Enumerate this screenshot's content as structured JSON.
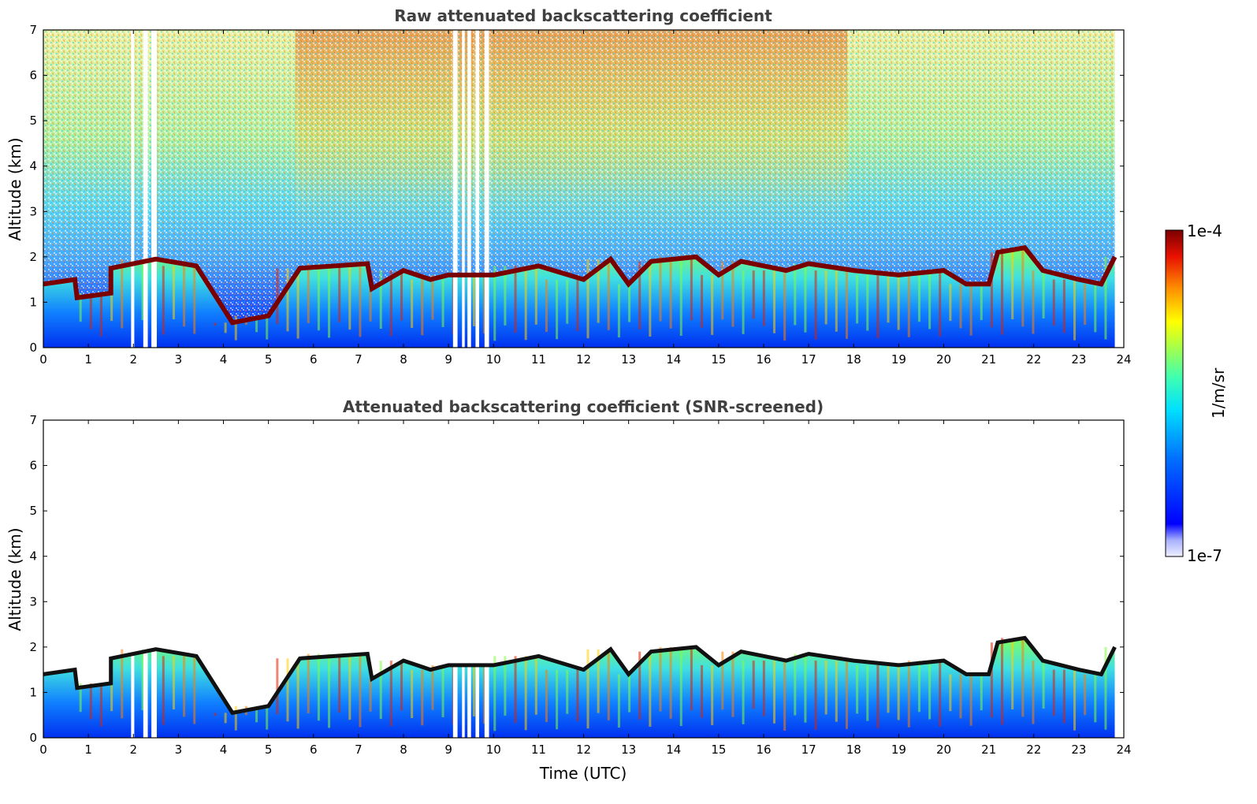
{
  "colors": {
    "jet": [
      "#eef0ff",
      "#c0c8ff",
      "#8c98ff",
      "#0000ff",
      "#0050ff",
      "#00a0ff",
      "#00e0ff",
      "#40ffc0",
      "#a0ff60",
      "#ffff00",
      "#ffc000",
      "#ff6000",
      "#e00000",
      "#7a0000"
    ],
    "boundary": "#7a0000",
    "boundary_screened": "#111111"
  },
  "chart_data": [
    {
      "type": "heatmap",
      "title": "Raw attenuated backscattering coefficient",
      "ylabel": "Altitude (km)",
      "xlabel": "",
      "xlim": [
        0,
        24
      ],
      "ylim": [
        0,
        7
      ],
      "x_ticks": [
        "0",
        "1",
        "2",
        "3",
        "4",
        "5",
        "6",
        "7",
        "8",
        "9",
        "10",
        "11",
        "12",
        "13",
        "14",
        "15",
        "16",
        "17",
        "18",
        "19",
        "20",
        "21",
        "22",
        "23",
        "24"
      ],
      "y_ticks": [
        "0",
        "1",
        "2",
        "3",
        "4",
        "5",
        "6",
        "7"
      ],
      "data_gaps_hours": [
        [
          1.95,
          2.02
        ],
        [
          2.22,
          2.32
        ],
        [
          2.4,
          2.52
        ],
        [
          9.1,
          9.2
        ],
        [
          9.3,
          9.36
        ],
        [
          9.42,
          9.5
        ],
        [
          9.6,
          9.68
        ],
        [
          9.8,
          9.9
        ]
      ],
      "boundary_layer_top_km": [
        [
          0,
          1.4
        ],
        [
          0.7,
          1.5
        ],
        [
          0.75,
          1.1
        ],
        [
          1.5,
          1.2
        ],
        [
          1.5,
          1.75
        ],
        [
          2.5,
          1.95
        ],
        [
          3.4,
          1.8
        ],
        [
          4.2,
          0.55
        ],
        [
          5,
          0.7
        ],
        [
          5.7,
          1.75
        ],
        [
          7.2,
          1.85
        ],
        [
          7.3,
          1.3
        ],
        [
          8,
          1.7
        ],
        [
          8.6,
          1.5
        ],
        [
          9,
          1.6
        ],
        [
          10,
          1.6
        ],
        [
          11,
          1.8
        ],
        [
          12,
          1.5
        ],
        [
          12.6,
          1.95
        ],
        [
          13,
          1.4
        ],
        [
          13.5,
          1.9
        ],
        [
          14.5,
          2.0
        ],
        [
          15,
          1.6
        ],
        [
          15.5,
          1.9
        ],
        [
          16.5,
          1.7
        ],
        [
          17,
          1.85
        ],
        [
          18,
          1.7
        ],
        [
          19,
          1.6
        ],
        [
          20,
          1.7
        ],
        [
          20.5,
          1.4
        ],
        [
          21,
          1.4
        ],
        [
          21.2,
          2.1
        ],
        [
          21.8,
          2.2
        ],
        [
          22.2,
          1.7
        ],
        [
          23,
          1.5
        ],
        [
          23.5,
          1.4
        ],
        [
          23.8,
          2.0
        ]
      ]
    },
    {
      "type": "heatmap",
      "title": "Attenuated backscattering coefficient (SNR-screened)",
      "ylabel": "Altitude (km)",
      "xlabel": "Time (UTC)",
      "xlim": [
        0,
        24
      ],
      "ylim": [
        0,
        7
      ],
      "x_ticks": [
        "0",
        "1",
        "2",
        "3",
        "4",
        "5",
        "6",
        "7",
        "8",
        "9",
        "10",
        "11",
        "12",
        "13",
        "14",
        "15",
        "16",
        "17",
        "18",
        "19",
        "20",
        "21",
        "22",
        "23",
        "24"
      ],
      "y_ticks": [
        "0",
        "1",
        "2",
        "3",
        "4",
        "5",
        "6",
        "7"
      ]
    }
  ],
  "colorbar": {
    "label": "1/m/sr",
    "max_label": "1e-4",
    "min_label": "1e-7"
  }
}
